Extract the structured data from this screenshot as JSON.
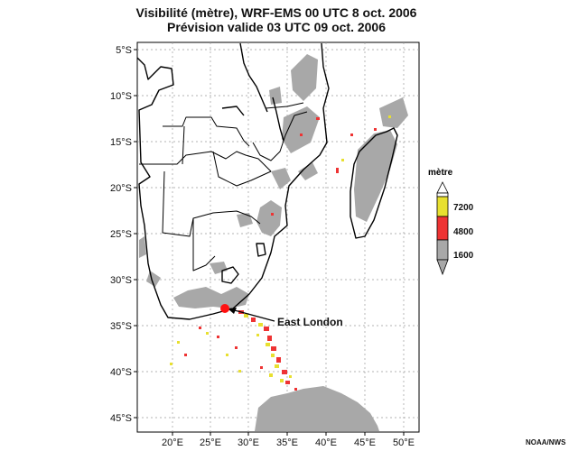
{
  "title_line1": "Visibilité (mètre), WRF-EMS 00 UTC 8 oct. 2006",
  "title_line2": "Prévision valide 03 UTC 09 oct. 2006",
  "axes": {
    "y_ticks": [
      "5°S",
      "10°S",
      "15°S",
      "20°S",
      "25°S",
      "30°S",
      "35°S",
      "40°S",
      "45°S"
    ],
    "x_ticks": [
      "20°E",
      "25°E",
      "30°E",
      "35°E",
      "40°E",
      "45°E",
      "50°E"
    ]
  },
  "legend": {
    "title": "mètre",
    "items": [
      {
        "label": "7200",
        "color": "#e8e030"
      },
      {
        "label": "4800",
        "color": "#ee3333"
      },
      {
        "label": "1600",
        "color": "#a8a8a8"
      }
    ]
  },
  "annotation": {
    "label": "East London"
  },
  "credit": "NOAA/NWS",
  "colors": {
    "fog_gray": "#a8a8a8",
    "marker": "#ff1010",
    "border": "#000000"
  }
}
